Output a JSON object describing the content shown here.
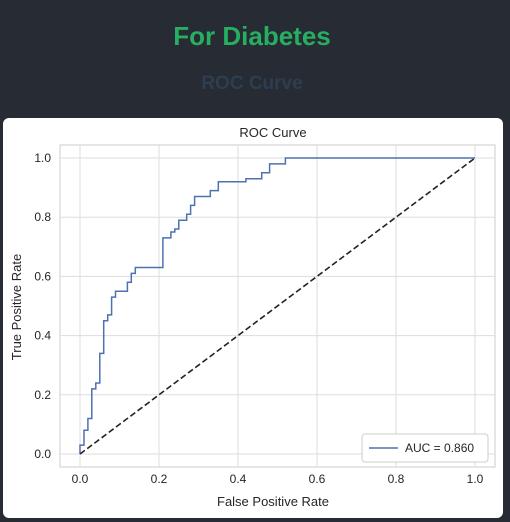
{
  "page": {
    "heading": "For Diabetes",
    "subheading": "ROC Curve"
  },
  "colors": {
    "background": "#272b33",
    "heading": "#27ae60",
    "subheading": "#2c3e50",
    "curve": "#4c72b0",
    "diagonal": "#222222",
    "grid": "#dddddd",
    "axis_spine": "#cccccc"
  },
  "chart_data": {
    "type": "line",
    "title": "ROC Curve",
    "xlabel": "False Positive Rate",
    "ylabel": "True Positive Rate",
    "xlim": [
      0.0,
      1.0
    ],
    "ylim": [
      0.0,
      1.0
    ],
    "xticks": [
      0.0,
      0.2,
      0.4,
      0.6,
      0.8,
      1.0
    ],
    "yticks": [
      0.0,
      0.2,
      0.4,
      0.6,
      0.8,
      1.0
    ],
    "xtick_labels": [
      "0.0",
      "0.2",
      "0.4",
      "0.6",
      "0.8",
      "1.0"
    ],
    "ytick_labels": [
      "0.0",
      "0.2",
      "0.4",
      "0.6",
      "0.8",
      "1.0"
    ],
    "grid": true,
    "legend_position": "bottom-right",
    "series": [
      {
        "name": "AUC = 0.860",
        "style": "solid",
        "x": [
          0.0,
          0.0,
          0.01,
          0.01,
          0.02,
          0.02,
          0.03,
          0.03,
          0.04,
          0.04,
          0.05,
          0.05,
          0.06,
          0.06,
          0.07,
          0.07,
          0.08,
          0.08,
          0.09,
          0.09,
          0.12,
          0.12,
          0.13,
          0.13,
          0.14,
          0.14,
          0.21,
          0.21,
          0.23,
          0.23,
          0.24,
          0.24,
          0.25,
          0.25,
          0.27,
          0.27,
          0.28,
          0.28,
          0.29,
          0.29,
          0.33,
          0.33,
          0.35,
          0.35,
          0.42,
          0.42,
          0.46,
          0.46,
          0.48,
          0.48,
          0.52,
          0.52,
          1.0
        ],
        "y": [
          0.0,
          0.03,
          0.03,
          0.08,
          0.08,
          0.12,
          0.12,
          0.22,
          0.22,
          0.24,
          0.24,
          0.34,
          0.34,
          0.45,
          0.45,
          0.47,
          0.47,
          0.53,
          0.53,
          0.55,
          0.55,
          0.58,
          0.58,
          0.61,
          0.61,
          0.63,
          0.63,
          0.73,
          0.73,
          0.75,
          0.75,
          0.76,
          0.76,
          0.79,
          0.79,
          0.81,
          0.81,
          0.84,
          0.84,
          0.87,
          0.87,
          0.89,
          0.89,
          0.92,
          0.92,
          0.93,
          0.93,
          0.95,
          0.95,
          0.98,
          0.98,
          1.0,
          1.0
        ]
      },
      {
        "name": "",
        "style": "dashed",
        "x": [
          0.0,
          1.0
        ],
        "y": [
          0.0,
          1.0
        ]
      }
    ]
  }
}
